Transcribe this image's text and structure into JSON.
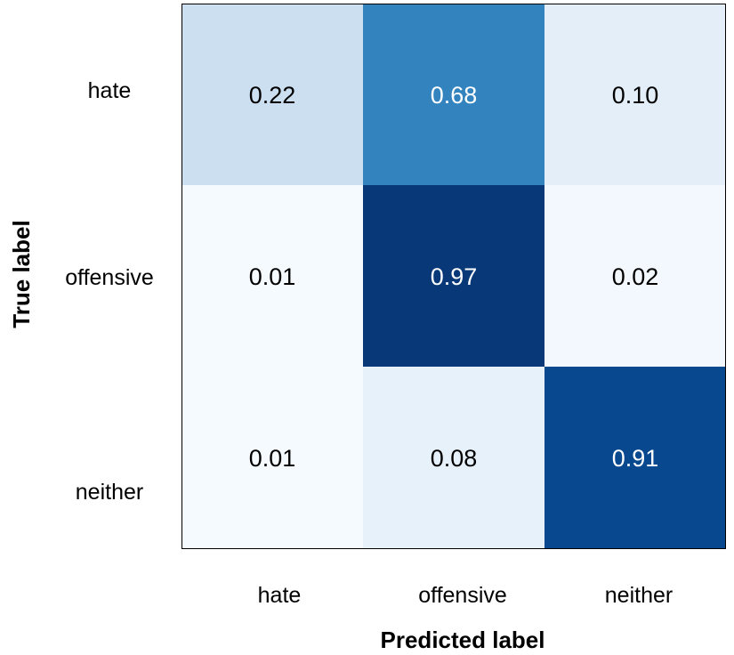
{
  "chart_data": {
    "type": "heatmap",
    "title": "",
    "xlabel": "Predicted label",
    "ylabel": "True label",
    "x_categories": [
      "hate",
      "offensive",
      "neither"
    ],
    "y_categories": [
      "hate",
      "offensive",
      "neither"
    ],
    "values": [
      [
        0.22,
        0.68,
        0.1
      ],
      [
        0.01,
        0.97,
        0.02
      ],
      [
        0.01,
        0.08,
        0.91
      ]
    ],
    "value_range": [
      0,
      1
    ],
    "colormap": "Blues",
    "colors": {
      "low": "#f7fbff",
      "high": "#08306b",
      "text_dark": "#000000",
      "text_light": "#ffffff"
    }
  }
}
